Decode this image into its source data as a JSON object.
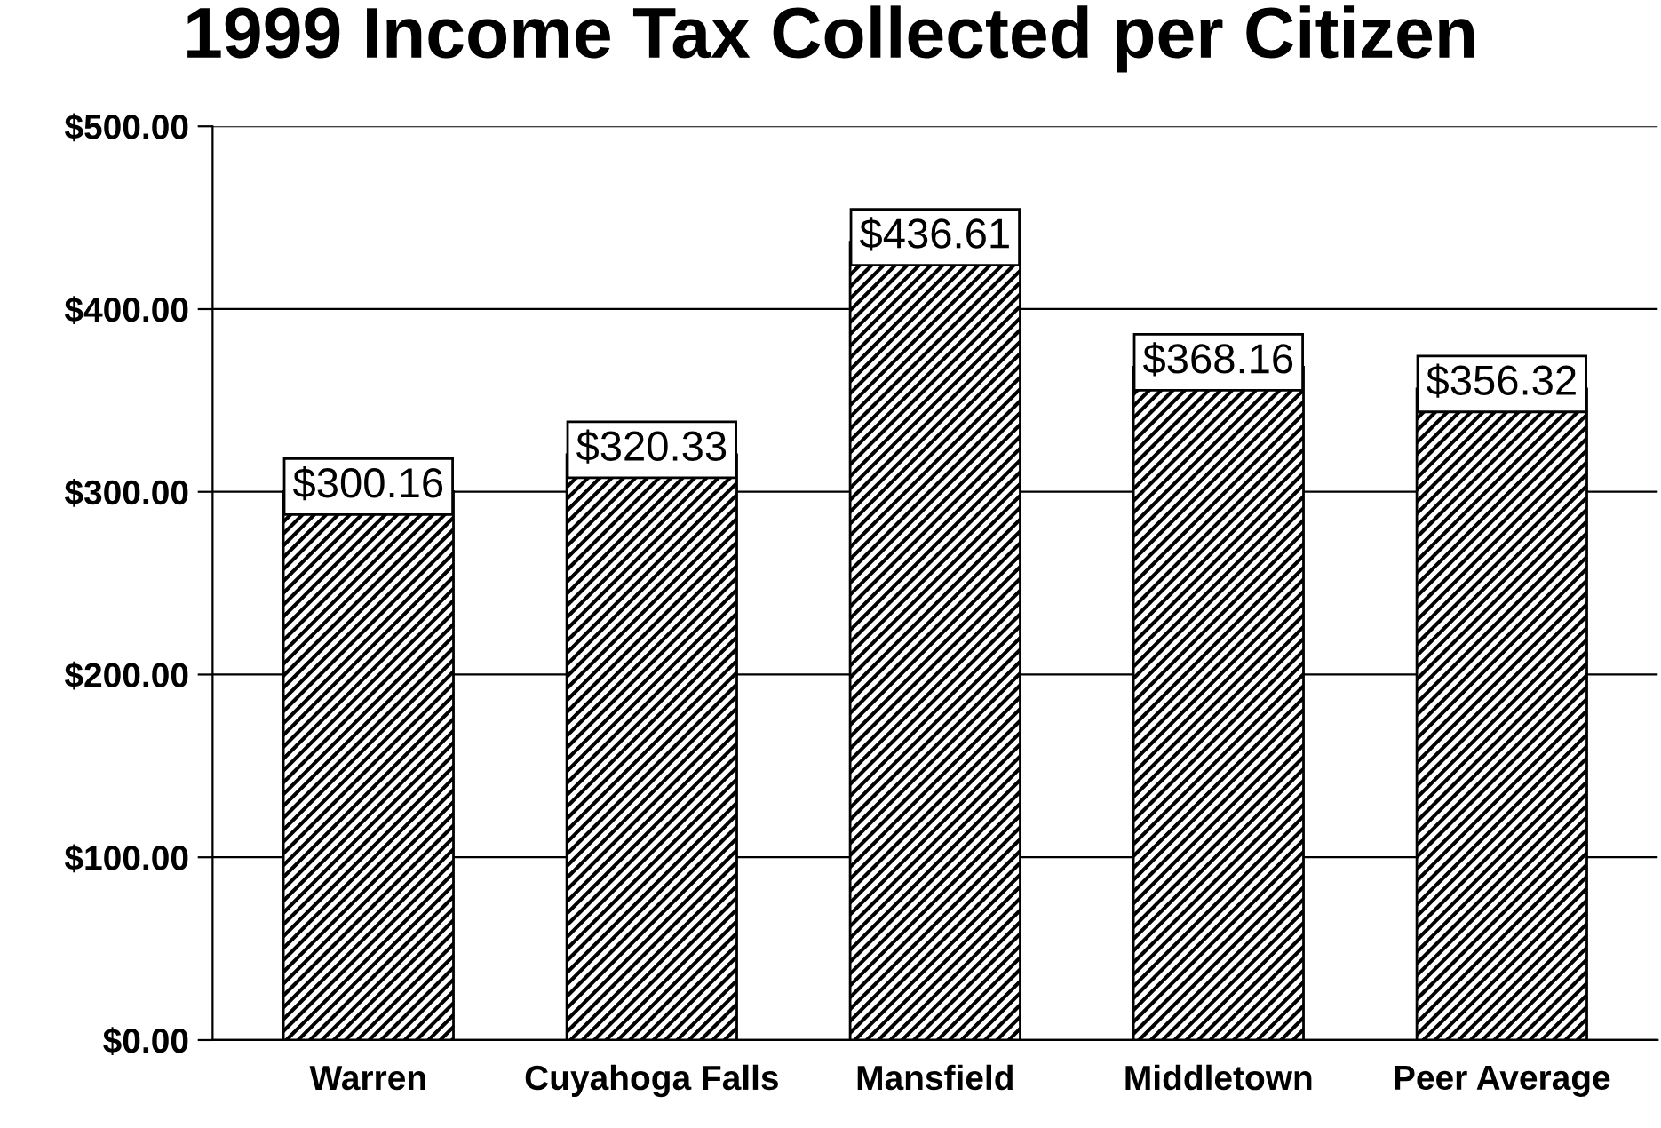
{
  "chart_data": {
    "type": "bar",
    "title": "1999 Income Tax Collected per Citizen",
    "categories": [
      "Warren",
      "Cuyahoga Falls",
      "Mansfield",
      "Middletown",
      "Peer Average"
    ],
    "values": [
      300.16,
      320.33,
      436.61,
      368.16,
      356.32
    ],
    "value_labels": [
      "$300.16",
      "$320.33",
      "$436.61",
      "$368.16",
      "$356.32"
    ],
    "color": "#000000",
    "ylim": [
      0,
      500
    ],
    "yticks": [
      {
        "value": 0,
        "label": "$0.00"
      },
      {
        "value": 100,
        "label": "$100.00"
      },
      {
        "value": 200,
        "label": "$200.00"
      },
      {
        "value": 300,
        "label": "$300.00"
      },
      {
        "value": 400,
        "label": "$400.00"
      },
      {
        "value": 500,
        "label": "$500.00"
      }
    ],
    "grid": "y"
  }
}
